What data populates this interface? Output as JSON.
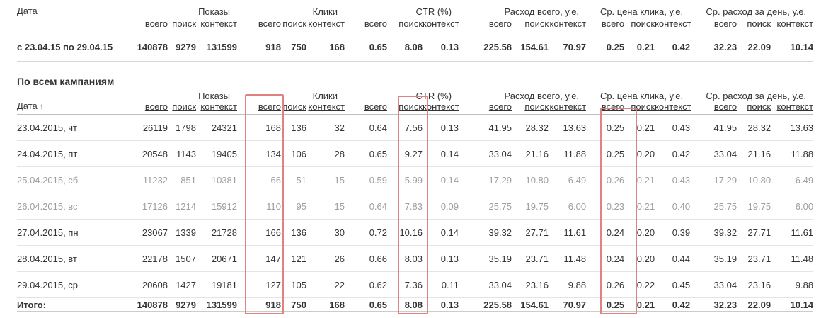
{
  "columns": {
    "date_label": "Дата",
    "sort_arrow": "↑",
    "sub_ids": [
      "total",
      "search",
      "context"
    ],
    "groups": [
      {
        "id": "impressions",
        "label": "Показы",
        "subs": [
          "всего",
          "поиск",
          "контекст"
        ]
      },
      {
        "id": "clicks",
        "label": "Клики",
        "subs": [
          "всего",
          "поиск",
          "контекст"
        ]
      },
      {
        "id": "ctr",
        "label": "CTR (%)",
        "subs": [
          "всего",
          "поиск",
          "контекст"
        ]
      },
      {
        "id": "cost-total",
        "label": "Расход всего, у.е.",
        "subs": [
          "всего",
          "поиск",
          "контекст"
        ]
      },
      {
        "id": "avg-cpc",
        "label": "Ср. цена клика, у.е.",
        "subs": [
          "всего",
          "поиск",
          "контекст"
        ]
      },
      {
        "id": "avg-daily-cost",
        "label": "Ср. расход за день, у.е.",
        "subs": [
          "всего",
          "поиск",
          "контекст"
        ]
      }
    ]
  },
  "summary": {
    "period": "с 23.04.15 по 29.04.15",
    "values": [
      "140878",
      "9279",
      "131599",
      "918",
      "750",
      "168",
      "0.65",
      "8.08",
      "0.13",
      "225.58",
      "154.61",
      "70.97",
      "0.25",
      "0.21",
      "0.42",
      "32.23",
      "22.09",
      "10.14"
    ]
  },
  "campaigns": {
    "title": "По всем кампаниям",
    "rows": [
      {
        "date": "23.04.2015, чт",
        "muted": false,
        "values": [
          "26119",
          "1798",
          "24321",
          "168",
          "136",
          "32",
          "0.64",
          "7.56",
          "0.13",
          "41.95",
          "28.32",
          "13.63",
          "0.25",
          "0.21",
          "0.43",
          "41.95",
          "28.32",
          "13.63"
        ]
      },
      {
        "date": "24.04.2015, пт",
        "muted": false,
        "values": [
          "20548",
          "1143",
          "19405",
          "134",
          "106",
          "28",
          "0.65",
          "9.27",
          "0.14",
          "33.04",
          "21.16",
          "11.88",
          "0.25",
          "0.20",
          "0.42",
          "33.04",
          "21.16",
          "11.88"
        ]
      },
      {
        "date": "25.04.2015, сб",
        "muted": true,
        "values": [
          "11232",
          "851",
          "10381",
          "66",
          "51",
          "15",
          "0.59",
          "5.99",
          "0.14",
          "17.29",
          "10.80",
          "6.49",
          "0.26",
          "0.21",
          "0.43",
          "17.29",
          "10.80",
          "6.49"
        ]
      },
      {
        "date": "26.04.2015, вс",
        "muted": true,
        "values": [
          "17126",
          "1214",
          "15912",
          "110",
          "95",
          "15",
          "0.64",
          "7.83",
          "0.09",
          "25.75",
          "19.75",
          "6.00",
          "0.23",
          "0.21",
          "0.40",
          "25.75",
          "19.75",
          "6.00"
        ]
      },
      {
        "date": "27.04.2015, пн",
        "muted": false,
        "values": [
          "23067",
          "1339",
          "21728",
          "166",
          "136",
          "30",
          "0.72",
          "10.16",
          "0.14",
          "39.32",
          "27.71",
          "11.61",
          "0.24",
          "0.20",
          "0.39",
          "39.32",
          "27.71",
          "11.61"
        ]
      },
      {
        "date": "28.04.2015, вт",
        "muted": false,
        "values": [
          "22178",
          "1507",
          "20671",
          "147",
          "121",
          "26",
          "0.66",
          "8.03",
          "0.13",
          "35.19",
          "23.71",
          "11.48",
          "0.24",
          "0.20",
          "0.44",
          "35.19",
          "23.71",
          "11.48"
        ]
      },
      {
        "date": "29.04.2015, ср",
        "muted": false,
        "values": [
          "20608",
          "1427",
          "19181",
          "127",
          "105",
          "22",
          "0.62",
          "7.36",
          "0.11",
          "33.04",
          "23.16",
          "9.88",
          "0.26",
          "0.22",
          "0.45",
          "33.04",
          "23.16",
          "9.88"
        ]
      }
    ],
    "total": {
      "label": "Итого:",
      "values": [
        "140878",
        "9279",
        "131599",
        "918",
        "750",
        "168",
        "0.65",
        "8.08",
        "0.13",
        "225.58",
        "154.61",
        "70.97",
        "0.25",
        "0.21",
        "0.42",
        "32.23",
        "22.09",
        "10.14"
      ]
    }
  },
  "highlights": {
    "border_color": "#e0827f",
    "boxes": [
      {
        "column": "clicks-total"
      },
      {
        "column": "ctr-search"
      },
      {
        "column": "avg-cpc-total"
      }
    ]
  },
  "colors": {
    "text": "#333333",
    "muted_text": "#9e9e9e"
  }
}
